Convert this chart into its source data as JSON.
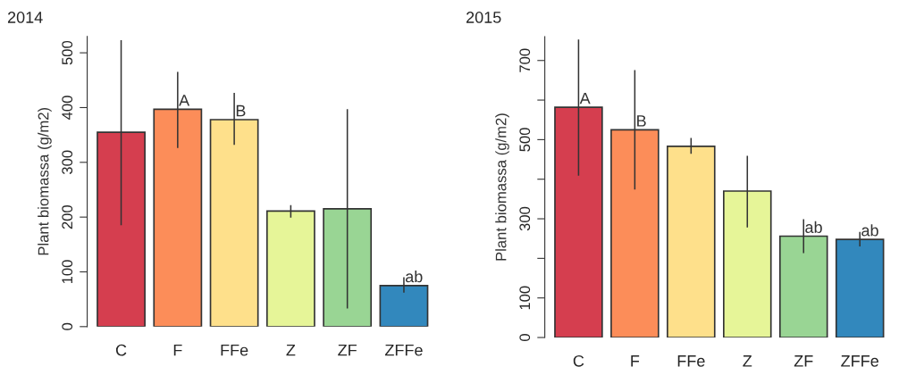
{
  "chart_data": [
    {
      "type": "bar",
      "title": "2014",
      "ylabel": "Plant biomassa (g/m2)",
      "categories": [
        "C",
        "F",
        "FFe",
        "Z",
        "ZF",
        "ZFFe"
      ],
      "values": [
        355,
        397,
        378,
        211,
        215,
        75
      ],
      "colors": [
        "#d53e4f",
        "#fc8d59",
        "#fee08b",
        "#e6f598",
        "#99d594",
        "#3288bd"
      ],
      "errors": [
        [
          185,
          523
        ],
        [
          326,
          465
        ],
        [
          332,
          427
        ],
        [
          199,
          222
        ],
        [
          33,
          397
        ],
        [
          62,
          90
        ]
      ],
      "value_labels": [
        null,
        "A",
        "B",
        null,
        null,
        "ab"
      ],
      "ylim": [
        0,
        530
      ],
      "yticks": [
        0,
        100,
        200,
        300,
        400,
        500
      ],
      "grid": false,
      "legend": false
    },
    {
      "type": "bar",
      "title": "2015",
      "ylabel": "Plant biomassa (g/m2)",
      "categories": [
        "C",
        "F",
        "FFe",
        "Z",
        "ZF",
        "ZFFe"
      ],
      "values": [
        582,
        525,
        483,
        370,
        256,
        248
      ],
      "colors": [
        "#d53e4f",
        "#fc8d59",
        "#fee08b",
        "#e6f598",
        "#99d594",
        "#3288bd"
      ],
      "errors": [
        [
          409,
          753
        ],
        [
          374,
          676
        ],
        [
          464,
          504
        ],
        [
          278,
          459
        ],
        [
          213,
          299
        ],
        [
          230,
          267
        ]
      ],
      "value_labels": [
        "A",
        "B",
        null,
        null,
        "ab",
        "ab"
      ],
      "ylim": [
        0,
        760
      ],
      "yticks": [
        0,
        100,
        {
          "value": 200,
          "label": null
        },
        300,
        {
          "value": 400,
          "label": null
        },
        500,
        {
          "value": 600,
          "label": null
        },
        700
      ],
      "grid": false,
      "legend": false
    }
  ]
}
